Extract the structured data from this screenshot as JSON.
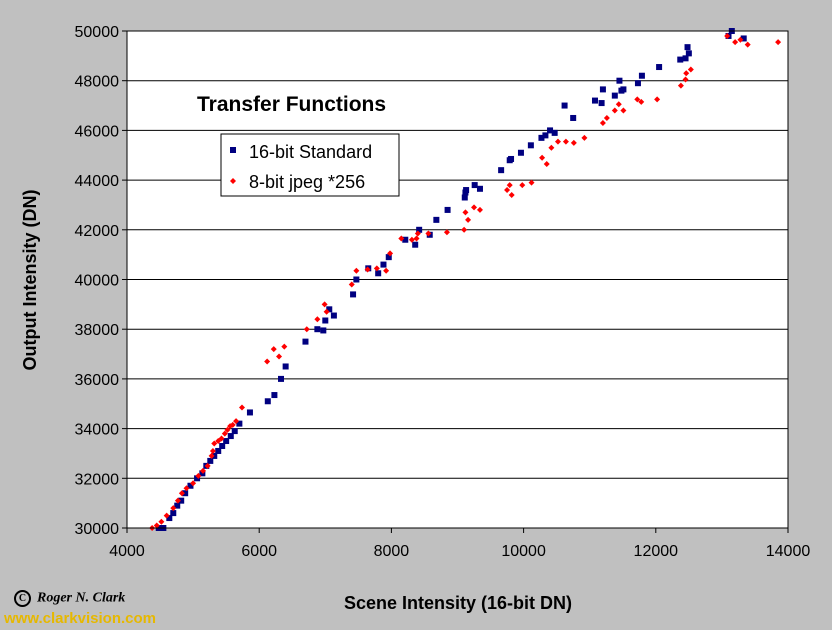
{
  "chart_data": {
    "type": "scatter",
    "title": "Transfer Functions",
    "xlabel": "Scene Intensity (16-bit DN)",
    "ylabel": "Output Intensity (DN)",
    "xlim": [
      4000,
      14000
    ],
    "ylim": [
      30000,
      50000
    ],
    "x_ticks": [
      "4000",
      "6000",
      "8000",
      "10000",
      "12000",
      "14000"
    ],
    "y_ticks": [
      "30000",
      "32000",
      "34000",
      "36000",
      "38000",
      "40000",
      "42000",
      "44000",
      "46000",
      "48000",
      "50000"
    ],
    "grid": "horizontal",
    "legend_position": "upper-left",
    "series": [
      {
        "name": "16-bit Standard",
        "color": "#000080",
        "marker": "square",
        "points": [
          [
            4480,
            30000
          ],
          [
            4550,
            30000
          ],
          [
            4640,
            30400
          ],
          [
            4700,
            30600
          ],
          [
            4760,
            30900
          ],
          [
            4820,
            31100
          ],
          [
            4880,
            31400
          ],
          [
            4960,
            31700
          ],
          [
            5060,
            32000
          ],
          [
            5140,
            32200
          ],
          [
            5200,
            32500
          ],
          [
            5260,
            32700
          ],
          [
            5320,
            32900
          ],
          [
            5380,
            33100
          ],
          [
            5440,
            33300
          ],
          [
            5500,
            33500
          ],
          [
            5570,
            33700
          ],
          [
            5630,
            33900
          ],
          [
            5700,
            34200
          ],
          [
            5860,
            34650
          ],
          [
            6130,
            35100
          ],
          [
            6230,
            35350
          ],
          [
            6330,
            36000
          ],
          [
            6400,
            36500
          ],
          [
            6700,
            37500
          ],
          [
            6880,
            38000
          ],
          [
            6970,
            37950
          ],
          [
            7000,
            38350
          ],
          [
            7060,
            38800
          ],
          [
            7130,
            38550
          ],
          [
            7420,
            39400
          ],
          [
            7470,
            40000
          ],
          [
            7650,
            40450
          ],
          [
            7800,
            40250
          ],
          [
            7880,
            40600
          ],
          [
            7960,
            40900
          ],
          [
            8210,
            41600
          ],
          [
            8360,
            41400
          ],
          [
            8420,
            42000
          ],
          [
            8580,
            41800
          ],
          [
            8680,
            42400
          ],
          [
            8850,
            42800
          ],
          [
            9110,
            43300
          ],
          [
            9120,
            43500
          ],
          [
            9130,
            43600
          ],
          [
            9260,
            43800
          ],
          [
            9340,
            43650
          ],
          [
            9660,
            44400
          ],
          [
            9790,
            44800
          ],
          [
            9810,
            44850
          ],
          [
            9960,
            45100
          ],
          [
            10110,
            45400
          ],
          [
            10270,
            45700
          ],
          [
            10330,
            45800
          ],
          [
            10400,
            46000
          ],
          [
            10470,
            45900
          ],
          [
            10620,
            47000
          ],
          [
            10750,
            46500
          ],
          [
            11080,
            47200
          ],
          [
            11180,
            47100
          ],
          [
            11200,
            47650
          ],
          [
            11380,
            47400
          ],
          [
            11480,
            47600
          ],
          [
            11510,
            47650
          ],
          [
            11450,
            48000
          ],
          [
            11730,
            47900
          ],
          [
            11790,
            48200
          ],
          [
            12050,
            48550
          ],
          [
            12370,
            48850
          ],
          [
            12450,
            48900
          ],
          [
            12500,
            49100
          ],
          [
            12480,
            49350
          ],
          [
            13100,
            49800
          ],
          [
            13150,
            50000
          ],
          [
            13330,
            49700
          ]
        ]
      },
      {
        "name": "8-bit jpeg *256",
        "color": "#ff0000",
        "marker": "diamond",
        "points": [
          [
            4380,
            30000
          ],
          [
            4450,
            30100
          ],
          [
            4520,
            30250
          ],
          [
            4600,
            30500
          ],
          [
            4700,
            30800
          ],
          [
            4770,
            31100
          ],
          [
            4830,
            31400
          ],
          [
            4900,
            31600
          ],
          [
            5000,
            31800
          ],
          [
            5080,
            32100
          ],
          [
            5150,
            32300
          ],
          [
            5220,
            32500
          ],
          [
            5280,
            32900
          ],
          [
            5300,
            33100
          ],
          [
            5320,
            33400
          ],
          [
            5380,
            33500
          ],
          [
            5430,
            33600
          ],
          [
            5480,
            33800
          ],
          [
            5520,
            33950
          ],
          [
            5560,
            34100
          ],
          [
            5600,
            34150
          ],
          [
            5650,
            34300
          ],
          [
            5740,
            34850
          ],
          [
            6120,
            36700
          ],
          [
            6220,
            37200
          ],
          [
            6300,
            36900
          ],
          [
            6380,
            37300
          ],
          [
            6720,
            38000
          ],
          [
            6880,
            38400
          ],
          [
            6990,
            39000
          ],
          [
            7020,
            38700
          ],
          [
            7400,
            39800
          ],
          [
            7470,
            40350
          ],
          [
            7640,
            40400
          ],
          [
            7780,
            40450
          ],
          [
            7920,
            40350
          ],
          [
            7980,
            41050
          ],
          [
            8150,
            41650
          ],
          [
            8310,
            41600
          ],
          [
            8380,
            41650
          ],
          [
            8400,
            41850
          ],
          [
            8560,
            41850
          ],
          [
            8840,
            41900
          ],
          [
            9100,
            42000
          ],
          [
            9120,
            42700
          ],
          [
            9160,
            42400
          ],
          [
            9250,
            42900
          ],
          [
            9340,
            42800
          ],
          [
            9750,
            43600
          ],
          [
            9790,
            43800
          ],
          [
            9820,
            43400
          ],
          [
            9980,
            43800
          ],
          [
            10120,
            43900
          ],
          [
            10280,
            44900
          ],
          [
            10350,
            44650
          ],
          [
            10420,
            45300
          ],
          [
            10520,
            45550
          ],
          [
            10640,
            45550
          ],
          [
            10760,
            45500
          ],
          [
            10920,
            45700
          ],
          [
            11200,
            46300
          ],
          [
            11260,
            46500
          ],
          [
            11380,
            46800
          ],
          [
            11440,
            47050
          ],
          [
            11510,
            46800
          ],
          [
            11720,
            47250
          ],
          [
            11780,
            47150
          ],
          [
            12020,
            47250
          ],
          [
            12380,
            47800
          ],
          [
            12450,
            48050
          ],
          [
            12460,
            48300
          ],
          [
            12530,
            48450
          ],
          [
            13080,
            49800
          ],
          [
            13200,
            49550
          ],
          [
            13280,
            49650
          ],
          [
            13390,
            49450
          ],
          [
            13850,
            49550
          ]
        ]
      }
    ]
  },
  "copyright": "Roger N. Clark",
  "copyright_symbol": "C",
  "website": "www.clarkvision.com"
}
